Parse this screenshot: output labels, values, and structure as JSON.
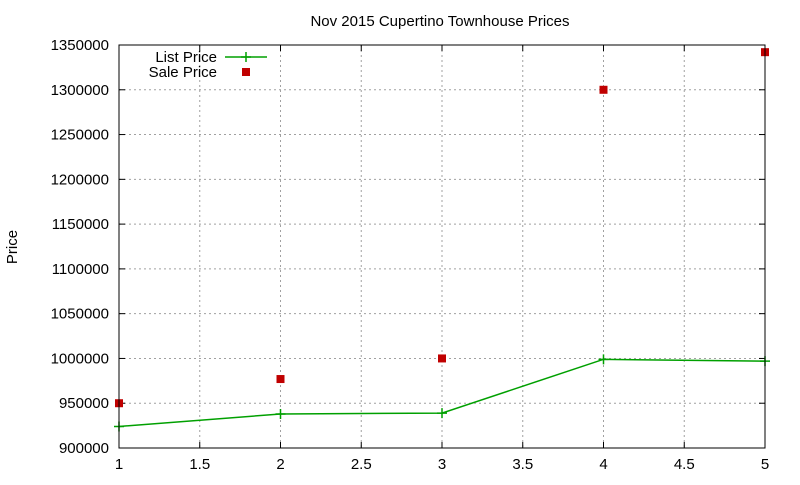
{
  "chart_data": {
    "type": "line",
    "title": "Nov 2015 Cupertino Townhouse Prices",
    "xlabel": "",
    "ylabel": "Price",
    "xlim": [
      1,
      5
    ],
    "ylim": [
      900000,
      1350000
    ],
    "x_ticks": [
      "1",
      "1.5",
      "2",
      "2.5",
      "3",
      "3.5",
      "4",
      "4.5",
      "5"
    ],
    "y_ticks": [
      "900000",
      "950000",
      "1000000",
      "1050000",
      "1100000",
      "1150000",
      "1200000",
      "1250000",
      "1300000",
      "1350000"
    ],
    "grid": true,
    "legend_position": "top-left",
    "series": [
      {
        "name": "List Price",
        "style": "line-plus",
        "color": "#00a000",
        "x": [
          1,
          2,
          3,
          4,
          5
        ],
        "values": [
          924000,
          938000,
          939000,
          999000,
          997000
        ]
      },
      {
        "name": "Sale Price",
        "style": "square-points",
        "color": "#c00000",
        "x": [
          1,
          2,
          3,
          4,
          5
        ],
        "values": [
          950000,
          977000,
          1000000,
          1300000,
          1342000
        ]
      }
    ]
  }
}
